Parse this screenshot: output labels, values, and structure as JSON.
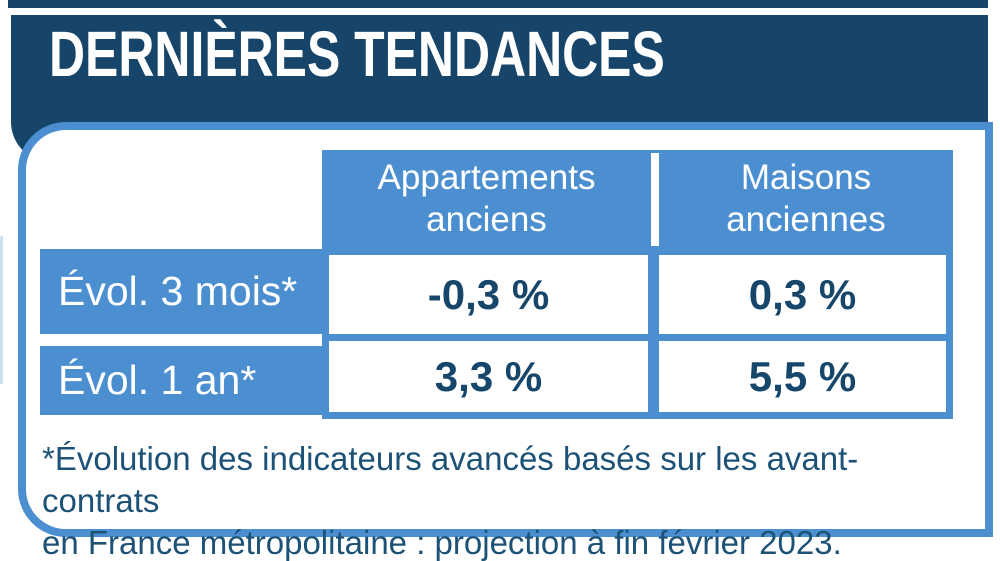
{
  "chart_data": {
    "type": "table",
    "title": "DERNIÈRES TENDANCES",
    "columns": [
      {
        "line1": "Appartements",
        "line2": "anciens"
      },
      {
        "line1": "Maisons",
        "line2": "anciennes"
      }
    ],
    "rows": [
      {
        "label": "Évol. 3 mois*",
        "values": [
          "-0,3 %",
          "0,3 %"
        ]
      },
      {
        "label": "Évol. 1 an*",
        "values": [
          "3,3 %",
          "5,5 %"
        ]
      }
    ],
    "footnote": [
      "*Évolution des indicateurs avancés basés sur les avant-contrats",
      "en France métropolitaine : projection à fin février 2023."
    ]
  },
  "colors": {
    "navy": "#17456A",
    "table_blue": "#4B8FD1",
    "value_text": "#17466B",
    "footnote_text": "#1D5277",
    "header_text": "#FFFFFF"
  }
}
